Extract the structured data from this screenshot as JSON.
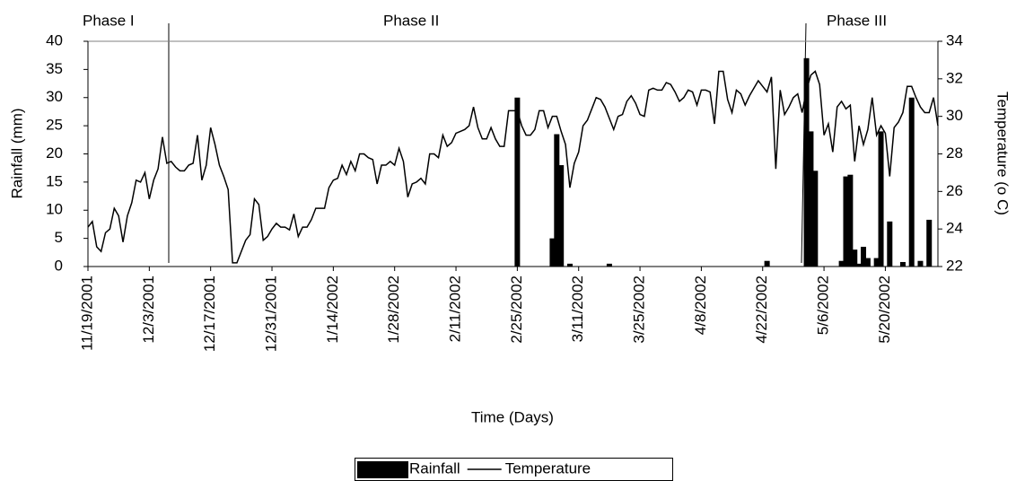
{
  "chart_data": {
    "type": "bar-line",
    "xlabel": "Time (Days)",
    "ylabel": "Rainfall (mm)",
    "y2label": "Temperature (o C)",
    "annotations": [
      "Phase I",
      "Phase II",
      "Phase III"
    ],
    "categories": [
      "11/19/2001",
      null,
      null,
      null,
      null,
      null,
      null,
      null,
      null,
      null,
      null,
      null,
      null,
      null,
      "12/3/2001",
      null,
      null,
      null,
      null,
      null,
      null,
      null,
      null,
      null,
      null,
      null,
      null,
      null,
      "12/17/2001",
      null,
      null,
      null,
      null,
      null,
      null,
      null,
      null,
      null,
      null,
      null,
      null,
      null,
      "12/31/2001",
      null,
      null,
      null,
      null,
      null,
      null,
      null,
      null,
      null,
      null,
      null,
      null,
      null,
      "1/14/2002",
      null,
      null,
      null,
      null,
      null,
      null,
      null,
      null,
      null,
      null,
      null,
      null,
      null,
      "1/28/2002",
      null,
      null,
      null,
      null,
      null,
      null,
      null,
      null,
      null,
      null,
      null,
      null,
      null,
      "2/11/2002",
      null,
      null,
      null,
      null,
      null,
      null,
      null,
      null,
      null,
      null,
      null,
      null,
      null,
      "2/25/2002",
      null,
      null,
      null,
      null,
      null,
      null,
      null,
      null,
      null,
      null,
      null,
      null,
      null,
      "3/11/2002",
      null,
      null,
      null,
      null,
      null,
      null,
      null,
      null,
      null,
      null,
      null,
      null,
      null,
      "3/25/2002",
      null,
      null,
      null,
      null,
      null,
      null,
      null,
      null,
      null,
      null,
      null,
      null,
      null,
      "4/8/2002",
      null,
      null,
      null,
      null,
      null,
      null,
      null,
      null,
      null,
      null,
      null,
      null,
      null,
      "4/22/2002",
      null,
      null,
      null,
      null,
      null,
      null,
      null,
      null,
      null,
      null,
      null,
      null,
      null,
      "5/6/2002",
      null,
      null,
      null,
      null,
      null,
      null,
      null,
      null,
      null,
      null,
      null,
      null,
      null,
      "5/20/2002",
      null,
      null,
      null,
      null,
      null,
      null,
      null,
      null,
      null,
      null,
      null,
      null
    ],
    "series": [
      {
        "name": "Rainfall",
        "type": "bar",
        "color": "#000000",
        "values": [
          0,
          0,
          0,
          0,
          0,
          0,
          0,
          0,
          0,
          0,
          0,
          0,
          0,
          0,
          0,
          0,
          0,
          0,
          0,
          0,
          0,
          0,
          0,
          0,
          0,
          0,
          0,
          0,
          0,
          0,
          0,
          0,
          0,
          0,
          0,
          0,
          0,
          0,
          0,
          0,
          0,
          0,
          0,
          0,
          0,
          0,
          0,
          0,
          0,
          0,
          0,
          0,
          0,
          0,
          0,
          0,
          0,
          0,
          0,
          0,
          0,
          0,
          0,
          0,
          0,
          0,
          0,
          0,
          0,
          0,
          0,
          0,
          0,
          0,
          0,
          0,
          0,
          0,
          0,
          0,
          0,
          0,
          0,
          0,
          0,
          0,
          0,
          0,
          0,
          0,
          0,
          0,
          0,
          0,
          0,
          0,
          0,
          0,
          30,
          0,
          0,
          0,
          0,
          0,
          0,
          0,
          5,
          23.5,
          18,
          0,
          0.5,
          0,
          0,
          0,
          0,
          0,
          0,
          0,
          0,
          0.5,
          0,
          0,
          0,
          0,
          0,
          0,
          0,
          0,
          0,
          0,
          0,
          0,
          0,
          0,
          0,
          0,
          0,
          0,
          0,
          0,
          0,
          0,
          0,
          0,
          0,
          0,
          0,
          0,
          0,
          0,
          0,
          0,
          0,
          0,
          0,
          1,
          0,
          0,
          0,
          0,
          0,
          0,
          0,
          0,
          37,
          24,
          17,
          0,
          0,
          0,
          0,
          0,
          1,
          16,
          16.3,
          3,
          0.5,
          3.5,
          1.5,
          0,
          1.5,
          24,
          0,
          8,
          0,
          0,
          0.8,
          0,
          30,
          0,
          1,
          0,
          8.3,
          0,
          0
        ]
      },
      {
        "name": "Temperature",
        "type": "line",
        "axis": "y2",
        "color": "#000000",
        "values": [
          24.1,
          24.4,
          23.05,
          22.8,
          23.8,
          24.0,
          25.1,
          24.7,
          23.3,
          24.7,
          25.4,
          26.6,
          26.5,
          27.0,
          25.6,
          26.6,
          27.2,
          28.9,
          27.5,
          27.6,
          27.3,
          27.1,
          27.1,
          27.4,
          27.5,
          29.0,
          26.6,
          27.4,
          29.4,
          28.5,
          27.4,
          26.8,
          26.1,
          22.2,
          22.2,
          22.8,
          23.4,
          23.7,
          25.6,
          25.3,
          23.4,
          23.6,
          24.0,
          24.3,
          24.1,
          24.1,
          23.95,
          24.8,
          23.6,
          24.1,
          24.1,
          24.5,
          25.1,
          25.1,
          25.1,
          26.2,
          26.6,
          26.7,
          27.4,
          26.9,
          27.6,
          27.1,
          28.0,
          28.0,
          27.8,
          27.7,
          26.4,
          27.4,
          27.4,
          27.6,
          27.4,
          28.3,
          27.6,
          25.7,
          26.4,
          26.5,
          26.7,
          26.4,
          28.0,
          28.0,
          27.8,
          29.0,
          28.4,
          28.6,
          29.1,
          29.2,
          29.3,
          29.5,
          30.5,
          29.4,
          28.8,
          28.8,
          29.4,
          28.8,
          28.4,
          28.4,
          30.3,
          30.3,
          30.3,
          29.5,
          29.0,
          29.0,
          29.3,
          30.3,
          30.3,
          29.4,
          30.0,
          30.0,
          29.2,
          28.5,
          26.2,
          27.5,
          28.1,
          29.5,
          29.8,
          30.4,
          31.0,
          30.9,
          30.5,
          29.9,
          29.3,
          30.0,
          30.1,
          30.8,
          31.1,
          30.7,
          30.1,
          30.0,
          31.4,
          31.5,
          31.4,
          31.4,
          31.8,
          31.7,
          31.3,
          30.8,
          31.0,
          31.4,
          31.3,
          30.6,
          31.4,
          31.4,
          31.3,
          29.6,
          32.4,
          32.4,
          30.9,
          30.2,
          31.4,
          31.2,
          30.6,
          31.1,
          31.5,
          31.9,
          31.6,
          31.3,
          32.1,
          27.2,
          31.4,
          30.1,
          30.5,
          31.0,
          31.2,
          30.2,
          31.4,
          32.2,
          32.4,
          31.7,
          29.0,
          29.6,
          28.1,
          30.5,
          30.8,
          30.4,
          30.6,
          27.6,
          29.5,
          28.5,
          29.3,
          31.0,
          29.0,
          29.5,
          29.1,
          26.8,
          29.4,
          29.7,
          30.2,
          31.6,
          31.6,
          31.0,
          30.5,
          30.2,
          30.2,
          31.0,
          29.5
        ]
      }
    ],
    "ylim": [
      0,
      40
    ],
    "yticks": [
      0,
      5,
      10,
      15,
      20,
      25,
      30,
      35,
      40
    ],
    "y2lim": [
      22,
      34
    ],
    "y2ticks": [
      22,
      24,
      26,
      28,
      30,
      32,
      34
    ],
    "grid": false,
    "legend": "bottom"
  }
}
